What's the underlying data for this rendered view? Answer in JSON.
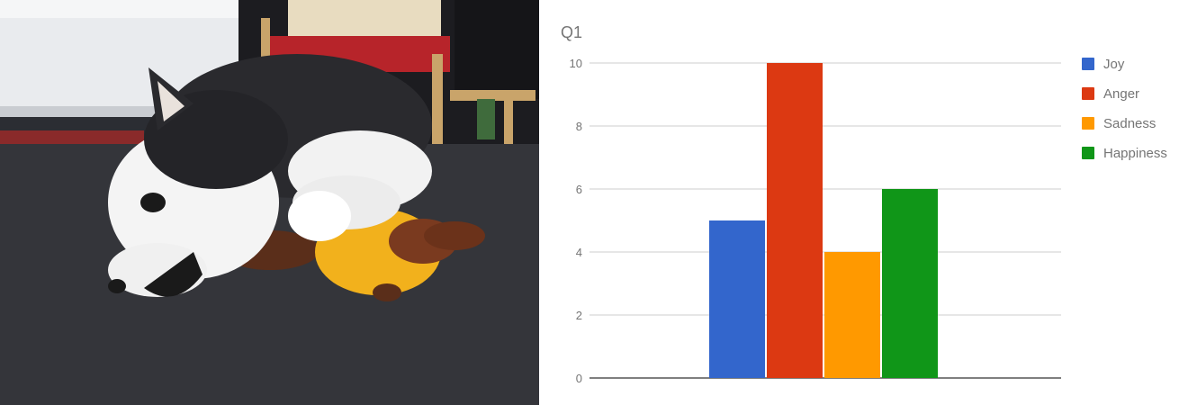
{
  "photo": {
    "subject": "husky dog chewing a plush toy on a dark carpet"
  },
  "chart_data": {
    "type": "bar",
    "title": "Q1",
    "categories": [
      ""
    ],
    "series": [
      {
        "name": "Joy",
        "values": [
          5
        ],
        "color": "#3366cc"
      },
      {
        "name": "Anger",
        "values": [
          10
        ],
        "color": "#dc3912"
      },
      {
        "name": "Sadness",
        "values": [
          4
        ],
        "color": "#ff9900"
      },
      {
        "name": "Happiness",
        "values": [
          6
        ],
        "color": "#109618"
      }
    ],
    "yticks": [
      0,
      2,
      4,
      6,
      8,
      10
    ],
    "ylim": [
      0,
      10
    ],
    "grid": true,
    "legend": "right"
  }
}
